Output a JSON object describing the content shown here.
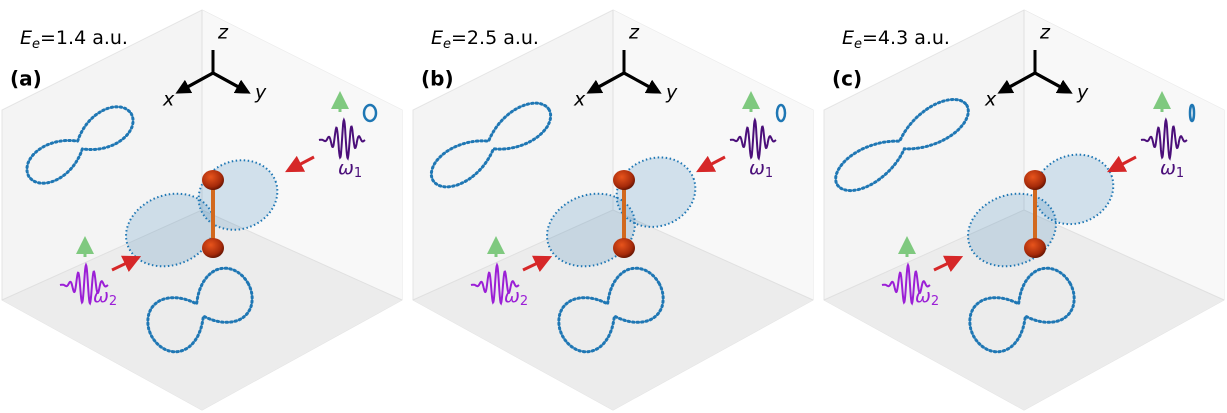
{
  "panels": [
    {
      "label": "(a)",
      "energy": {
        "symbol": "E",
        "subscript": "e",
        "value": "=1.4 a.u."
      },
      "axes": {
        "x": "x",
        "y": "y",
        "z": "z"
      },
      "omega1": {
        "symbol": "ω",
        "subscript": "1"
      },
      "omega2": {
        "symbol": "ω",
        "subscript": "2"
      }
    },
    {
      "label": "(b)",
      "energy": {
        "symbol": "E",
        "subscript": "e",
        "value": "=2.5 a.u."
      },
      "axes": {
        "x": "x",
        "y": "y",
        "z": "z"
      },
      "omega1": {
        "symbol": "ω",
        "subscript": "1"
      },
      "omega2": {
        "symbol": "ω",
        "subscript": "2"
      }
    },
    {
      "label": "(c)",
      "energy": {
        "symbol": "E",
        "subscript": "e",
        "value": "=4.3 a.u."
      },
      "axes": {
        "x": "x",
        "y": "y",
        "z": "z"
      },
      "omega1": {
        "symbol": "ω",
        "subscript": "1"
      },
      "omega2": {
        "symbol": "ω",
        "subscript": "2"
      }
    }
  ]
}
